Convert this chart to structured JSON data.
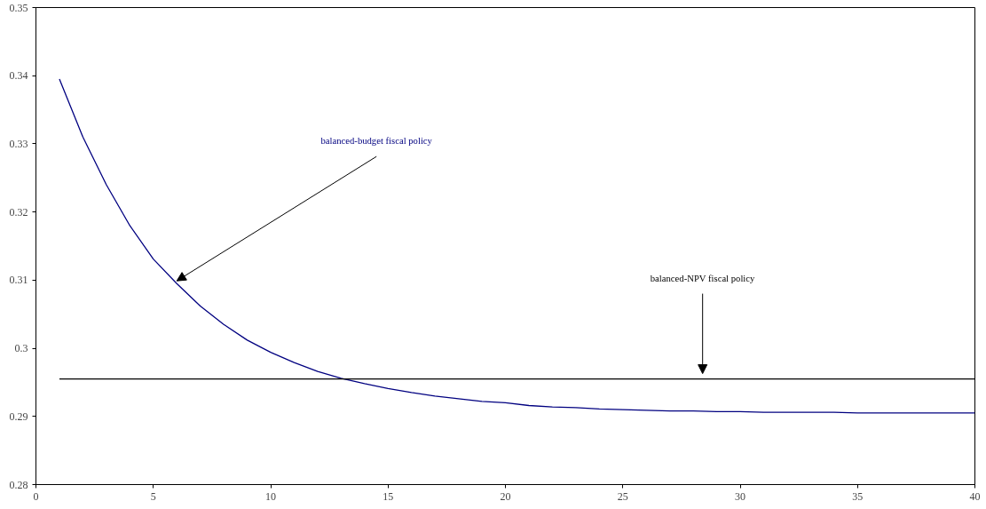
{
  "chart_data": {
    "type": "line",
    "x": [
      1,
      2,
      3,
      4,
      5,
      6,
      7,
      8,
      9,
      10,
      11,
      12,
      13,
      14,
      15,
      16,
      17,
      18,
      19,
      20,
      21,
      22,
      23,
      24,
      25,
      26,
      27,
      28,
      29,
      30,
      31,
      32,
      33,
      34,
      35,
      36,
      37,
      38,
      39,
      40
    ],
    "series": [
      {
        "name": "balanced-budget fiscal policy",
        "color": "#000080",
        "values": [
          0.3395,
          0.331,
          0.324,
          0.318,
          0.3131,
          0.3095,
          0.3062,
          0.3035,
          0.3012,
          0.2994,
          0.2979,
          0.2966,
          0.2956,
          0.2948,
          0.2941,
          0.2935,
          0.293,
          0.2926,
          0.2922,
          0.292,
          0.2916,
          0.2914,
          0.2913,
          0.2911,
          0.291,
          0.2909,
          0.2908,
          0.2908,
          0.2907,
          0.2907,
          0.2906,
          0.2906,
          0.2906,
          0.2906,
          0.2905,
          0.2905,
          0.2905,
          0.2905,
          0.2905,
          0.2905
        ]
      },
      {
        "name": "balanced-NPV fiscal policy",
        "color": "#000000",
        "values": [
          0.2955,
          0.2955,
          0.2955,
          0.2955,
          0.2955,
          0.2955,
          0.2955,
          0.2955,
          0.2955,
          0.2955,
          0.2955,
          0.2955,
          0.2955,
          0.2955,
          0.2955,
          0.2955,
          0.2955,
          0.2955,
          0.2955,
          0.2955,
          0.2955,
          0.2955,
          0.2955,
          0.2955,
          0.2955,
          0.2955,
          0.2955,
          0.2955,
          0.2955,
          0.2955,
          0.2955,
          0.2955,
          0.2955,
          0.2955,
          0.2955,
          0.2955,
          0.2955,
          0.2955,
          0.2955,
          0.2955
        ]
      }
    ],
    "xlim": [
      0,
      40
    ],
    "ylim": [
      0.28,
      0.35
    ],
    "xticks": [
      0,
      5,
      10,
      15,
      20,
      25,
      30,
      35,
      40
    ],
    "yticks": [
      0.28,
      0.29,
      0.3,
      0.31,
      0.32,
      0.33,
      0.34,
      0.35
    ],
    "grid": false,
    "legend": false,
    "marker": "none",
    "line_style": "solid"
  }
}
